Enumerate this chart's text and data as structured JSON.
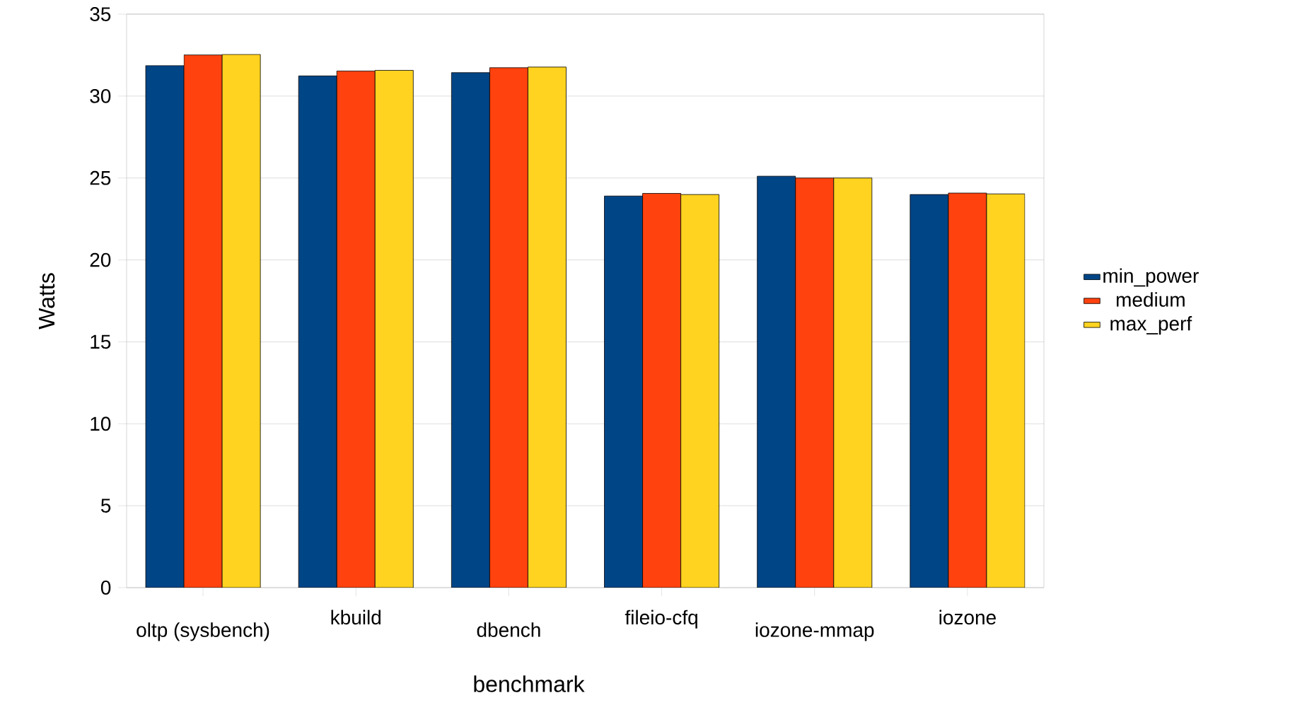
{
  "chart_data": {
    "type": "bar",
    "xlabel": "benchmark",
    "ylabel": "Watts",
    "categories": [
      "oltp (sysbench)",
      "kbuild",
      "dbench",
      "fileio-cfq",
      "iozone-mmap",
      "iozone"
    ],
    "series": [
      {
        "name": "min_power",
        "color": "#004586",
        "values": [
          31.86,
          31.23,
          31.43,
          23.9,
          25.11,
          23.99
        ]
      },
      {
        "name": "medium",
        "color": "#ff420e",
        "values": [
          32.51,
          31.53,
          31.73,
          24.06,
          25.0,
          24.08
        ]
      },
      {
        "name": "max_perf",
        "color": "#ffd320",
        "values": [
          32.54,
          31.57,
          31.77,
          23.99,
          25.0,
          24.03
        ]
      }
    ],
    "ylim": [
      0,
      35
    ],
    "yticks": [
      0,
      5,
      10,
      15,
      20,
      25,
      30,
      35
    ],
    "grid": "y",
    "legend": "right"
  }
}
